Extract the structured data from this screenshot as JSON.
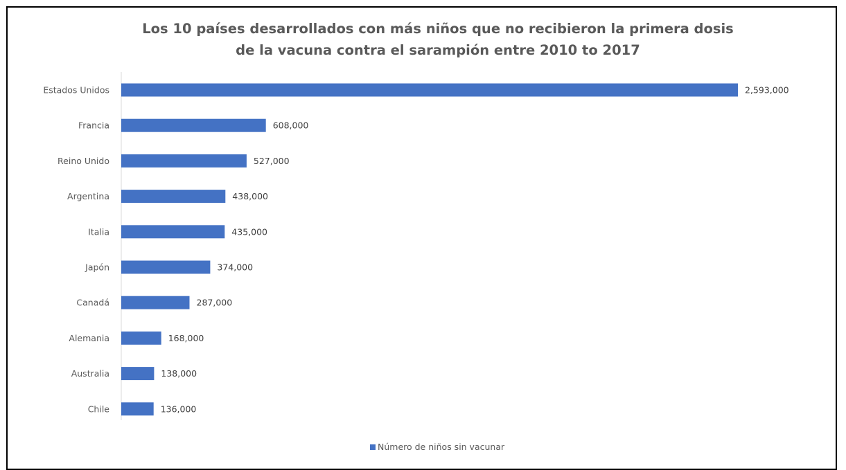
{
  "chart_data": {
    "type": "bar",
    "orientation": "horizontal",
    "title": [
      "Los 10 países desarrollados con más niños que no recibieron la primera dosis",
      "de la vacuna contra el sarampión entre 2010 to 2017"
    ],
    "categories": [
      "Estados Unidos",
      "Francia",
      "Reino Unido",
      "Argentina",
      "Italia",
      "Japón",
      "Canadá",
      "Alemania",
      "Australia",
      "Chile"
    ],
    "series": [
      {
        "name": "Número de niños sin vacunar",
        "color": "#4472c4",
        "values": [
          2593000,
          608000,
          527000,
          438000,
          435000,
          374000,
          287000,
          168000,
          138000,
          136000
        ],
        "labels": [
          "2,593,000",
          "608,000",
          "527,000",
          "438,000",
          "435,000",
          "374,000",
          "287,000",
          "168,000",
          "138,000",
          "136,000"
        ]
      }
    ],
    "xlim": [
      0,
      2593000
    ],
    "grid": false,
    "legend_position": "bottom"
  }
}
